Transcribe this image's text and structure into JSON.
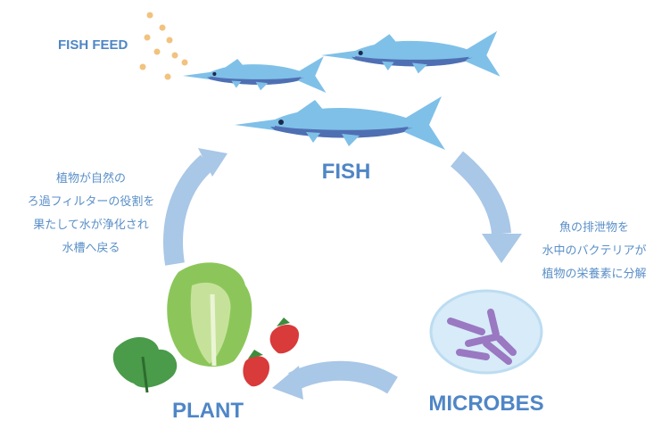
{
  "labels": {
    "fish_feed": "FISH FEED",
    "fish": "FISH",
    "microbes": "MICROBES",
    "plant": "PLANT"
  },
  "notes": {
    "left": [
      "植物が自然の",
      "ろ過フィルターの役割を",
      "果たして水が浄化され",
      "水槽へ戻る"
    ],
    "right": [
      "魚の排泄物を",
      "水中のバクテリアが",
      "植物の栄養素に分解"
    ]
  }
}
